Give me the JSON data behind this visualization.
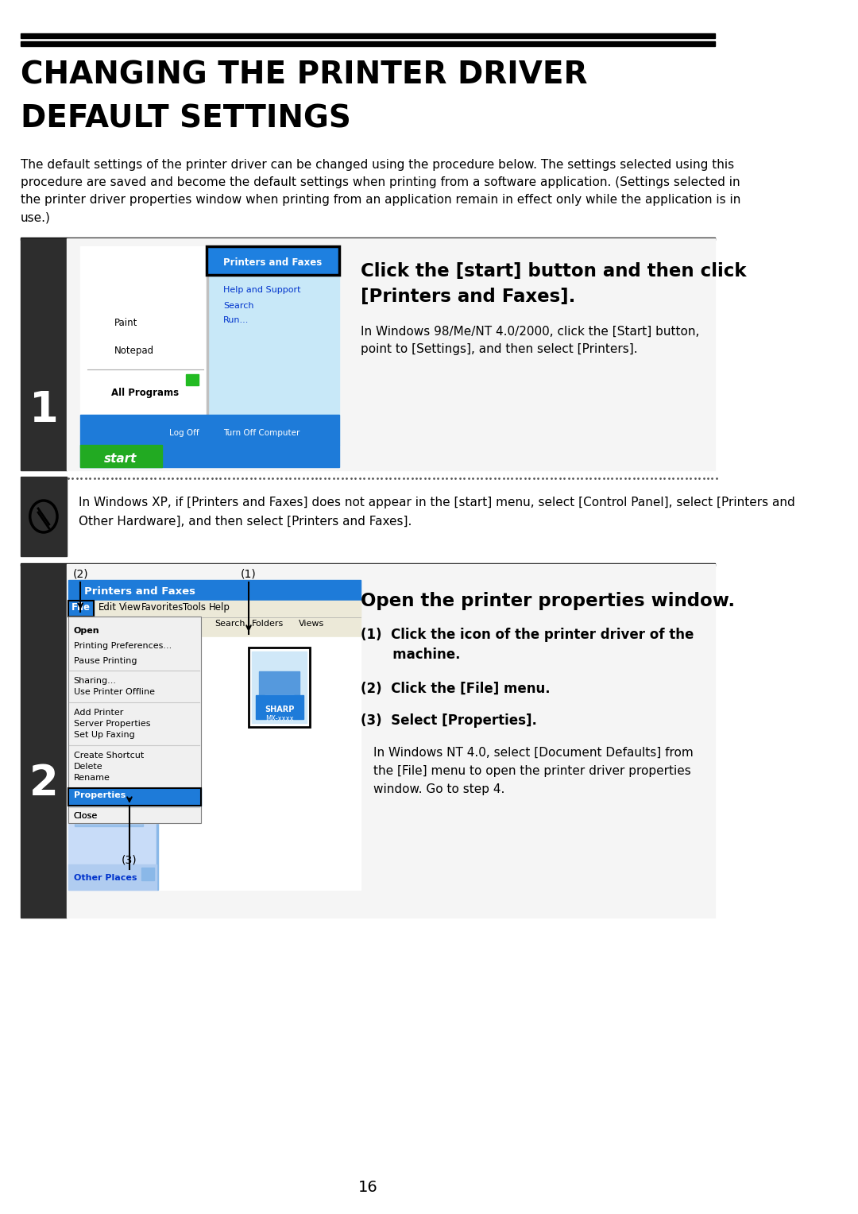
{
  "title_line1": "CHANGING THE PRINTER DRIVER",
  "title_line2": "DEFAULT SETTINGS",
  "intro_text": "The default settings of the printer driver can be changed using the procedure below. The settings selected using this\nprocedure are saved and become the default settings when printing from a software application. (Settings selected in\nthe printer driver properties window when printing from an application remain in effect only while the application is in\nuse.)",
  "step1_heading_l1": "Click the [start] button and then click",
  "step1_heading_l2": "[Printers and Faxes].",
  "step1_note_l1": "In Windows 98/Me/NT 4.0/2000, click the [Start] button,",
  "step1_note_l2": "point to [Settings], and then select [Printers].",
  "step1_warning": "In Windows XP, if [Printers and Faxes] does not appear in the [start] menu, select [Control Panel], select [Printers and\nOther Hardware], and then select [Printers and Faxes].",
  "step2_heading": "Open the printer properties window.",
  "step2_item1a": "(1)  Click the icon of the printer driver of the",
  "step2_item1b": "       machine.",
  "step2_item2": "(2)  Click the [File] menu.",
  "step2_item3": "(3)  Select [Properties].",
  "step2_note_l1": "In Windows NT 4.0, select [Document Defaults] from",
  "step2_note_l2": "the [File] menu to open the printer driver properties",
  "step2_note_l3": "window. Go to step 4.",
  "page_number": "16",
  "bg_color": "#ffffff",
  "dark_bar": "#2d2d2d",
  "step_box_bg": "#f0f0f0",
  "blue_title": "#1e7bd9",
  "blue_menu": "#1e7bd9"
}
